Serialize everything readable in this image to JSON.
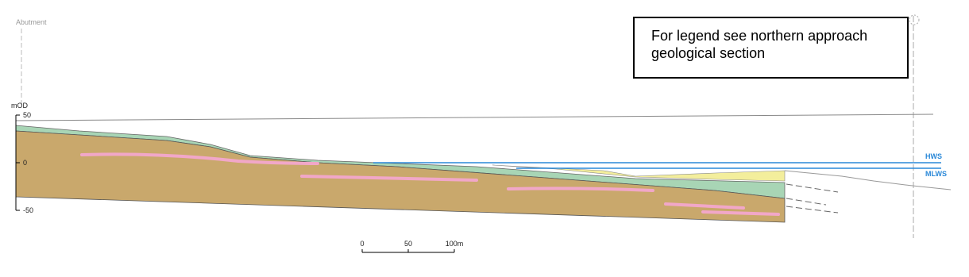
{
  "header": {
    "label": "Abutment"
  },
  "legend_note": "For legend see northern approach geological section",
  "axis": {
    "title": "mOD",
    "ticks": [
      "50",
      "0",
      "-50"
    ]
  },
  "tide_levels": [
    "HWS",
    "MLWS"
  ],
  "scale_bar": [
    "0",
    "50",
    "100m"
  ]
}
